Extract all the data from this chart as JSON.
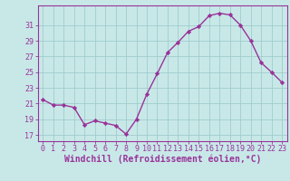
{
  "x": [
    0,
    1,
    2,
    3,
    4,
    5,
    6,
    7,
    8,
    9,
    10,
    11,
    12,
    13,
    14,
    15,
    16,
    17,
    18,
    19,
    20,
    21,
    22,
    23
  ],
  "y": [
    21.5,
    20.8,
    20.8,
    20.5,
    18.3,
    18.8,
    18.5,
    18.2,
    17.1,
    19.0,
    22.2,
    24.8,
    27.5,
    28.8,
    30.2,
    30.8,
    32.2,
    32.5,
    32.3,
    31.0,
    29.0,
    26.2,
    25.0,
    23.7
  ],
  "line_color": "#993399",
  "marker": "D",
  "marker_size": 2.2,
  "bg_color": "#c8e8e8",
  "grid_color": "#a0cccc",
  "xlabel": "Windchill (Refroidissement éolien,°C)",
  "ylabel_ticks": [
    17,
    19,
    21,
    23,
    25,
    27,
    29,
    31
  ],
  "ylim": [
    16.2,
    33.5
  ],
  "xlim": [
    -0.5,
    23.5
  ],
  "tick_fontsize": 6.0,
  "label_fontsize": 7.0,
  "line_width": 1.0
}
